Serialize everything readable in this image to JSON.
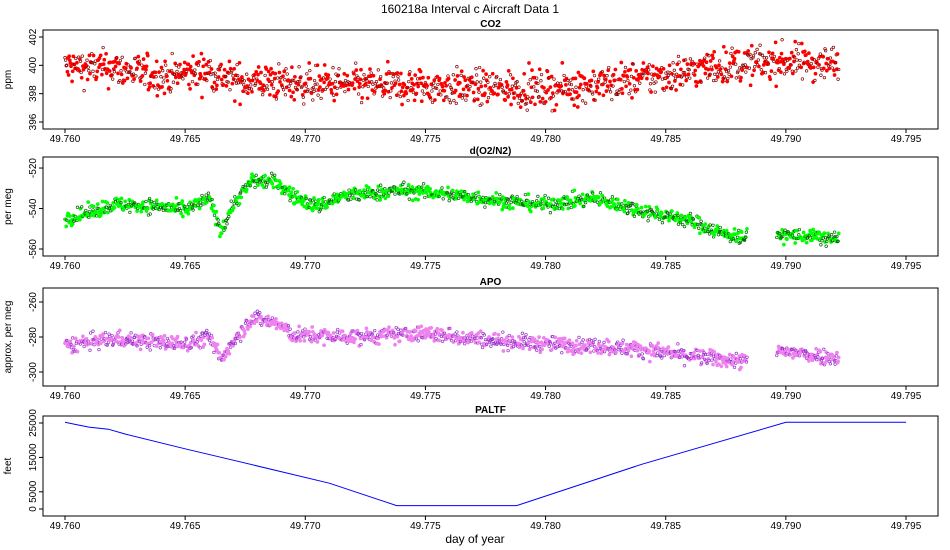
{
  "page_title": "160218a   Interval c Aircraft Data 1",
  "xlabel": "day of year",
  "chart_data": [
    {
      "type": "scatter",
      "title": "CO2",
      "ylabel": "ppm",
      "xlim": [
        49.76,
        49.795
      ],
      "ylim": [
        396,
        402
      ],
      "xticks": [
        "49.760",
        "49.765",
        "49.770",
        "49.775",
        "49.780",
        "49.785",
        "49.790",
        "49.795"
      ],
      "yticks": [
        "396",
        "398",
        "400",
        "402"
      ],
      "point_color": "#ff0000",
      "outline_color": "#8b0000",
      "x_range": [
        49.76,
        49.7922
      ],
      "trend": [
        [
          49.76,
          399.9
        ],
        [
          49.762,
          399.8
        ],
        [
          49.764,
          399.2
        ],
        [
          49.766,
          399.6
        ],
        [
          49.767,
          398.9
        ],
        [
          49.77,
          398.7
        ],
        [
          49.775,
          398.5
        ],
        [
          49.78,
          398.3
        ],
        [
          49.783,
          398.8
        ],
        [
          49.785,
          399.3
        ],
        [
          49.787,
          399.9
        ],
        [
          49.79,
          400.3
        ],
        [
          49.7922,
          400.1
        ]
      ],
      "noise": 0.9,
      "gap": null
    },
    {
      "type": "scatter",
      "title": "d(O2/N2)",
      "ylabel": "per meg",
      "xlim": [
        49.76,
        49.795
      ],
      "ylim": [
        -560,
        -518
      ],
      "xticks": [
        "49.760",
        "49.765",
        "49.770",
        "49.775",
        "49.780",
        "49.785",
        "49.790",
        "49.795"
      ],
      "yticks": [
        "-560",
        "-540",
        "-520"
      ],
      "point_color": "#00ff00",
      "outline_color": "#006400",
      "x_range": [
        49.76,
        49.7922
      ],
      "trend": [
        [
          49.76,
          -545
        ],
        [
          49.761,
          -542
        ],
        [
          49.762,
          -538
        ],
        [
          49.764,
          -539
        ],
        [
          49.765,
          -541
        ],
        [
          49.766,
          -535
        ],
        [
          49.7665,
          -551
        ],
        [
          49.767,
          -538
        ],
        [
          49.7678,
          -526
        ],
        [
          49.7688,
          -527
        ],
        [
          49.7695,
          -534
        ],
        [
          49.7705,
          -539
        ],
        [
          49.7715,
          -534
        ],
        [
          49.774,
          -531
        ],
        [
          49.776,
          -533
        ],
        [
          49.778,
          -536
        ],
        [
          49.78,
          -538
        ],
        [
          49.782,
          -535
        ],
        [
          49.784,
          -541
        ],
        [
          49.786,
          -546
        ],
        [
          49.7875,
          -553
        ],
        [
          49.7883,
          -554
        ],
        [
          49.7898,
          -553
        ],
        [
          49.7922,
          -555
        ]
      ],
      "noise": 2.6,
      "gap": [
        49.7884,
        49.7896
      ]
    },
    {
      "type": "scatter",
      "title": "APO",
      "ylabel": "approx. per meg",
      "xlim": [
        49.76,
        49.795
      ],
      "ylim": [
        -304,
        -256
      ],
      "xticks": [
        "49.760",
        "49.765",
        "49.770",
        "49.775",
        "49.780",
        "49.785",
        "49.790",
        "49.795"
      ],
      "yticks": [
        "-300",
        "-280",
        "-260"
      ],
      "point_color": "#ee82ee",
      "outline_color": "#9932cc",
      "x_range": [
        49.76,
        49.7922
      ],
      "trend": [
        [
          49.76,
          -285
        ],
        [
          49.762,
          -281
        ],
        [
          49.765,
          -284
        ],
        [
          49.766,
          -280
        ],
        [
          49.7665,
          -293
        ],
        [
          49.767,
          -282
        ],
        [
          49.7678,
          -269
        ],
        [
          49.7688,
          -272
        ],
        [
          49.7695,
          -279
        ],
        [
          49.772,
          -280
        ],
        [
          49.775,
          -278
        ],
        [
          49.778,
          -282
        ],
        [
          49.78,
          -284
        ],
        [
          49.782,
          -285
        ],
        [
          49.784,
          -287
        ],
        [
          49.786,
          -291
        ],
        [
          49.7883,
          -294
        ],
        [
          49.7898,
          -288
        ],
        [
          49.7922,
          -292
        ]
      ],
      "noise": 3.2,
      "gap": [
        49.7884,
        49.7896
      ]
    },
    {
      "type": "line",
      "title": "PALTF",
      "ylabel": "feet",
      "xlim": [
        49.76,
        49.795
      ],
      "ylim": [
        0,
        25000
      ],
      "xticks": [
        "49.760",
        "49.765",
        "49.770",
        "49.775",
        "49.780",
        "49.785",
        "49.790",
        "49.795"
      ],
      "yticks": [
        "0",
        "5000",
        "15000",
        "25000"
      ],
      "line_color": "#0000ff",
      "x": [
        49.76,
        49.7605,
        49.761,
        49.7618,
        49.7625,
        49.765,
        49.767,
        49.771,
        49.7738,
        49.7788,
        49.784,
        49.79,
        49.795
      ],
      "y": [
        25200,
        24500,
        23800,
        23200,
        21800,
        17500,
        14200,
        7500,
        1000,
        1000,
        13000,
        25200,
        25200
      ]
    }
  ]
}
